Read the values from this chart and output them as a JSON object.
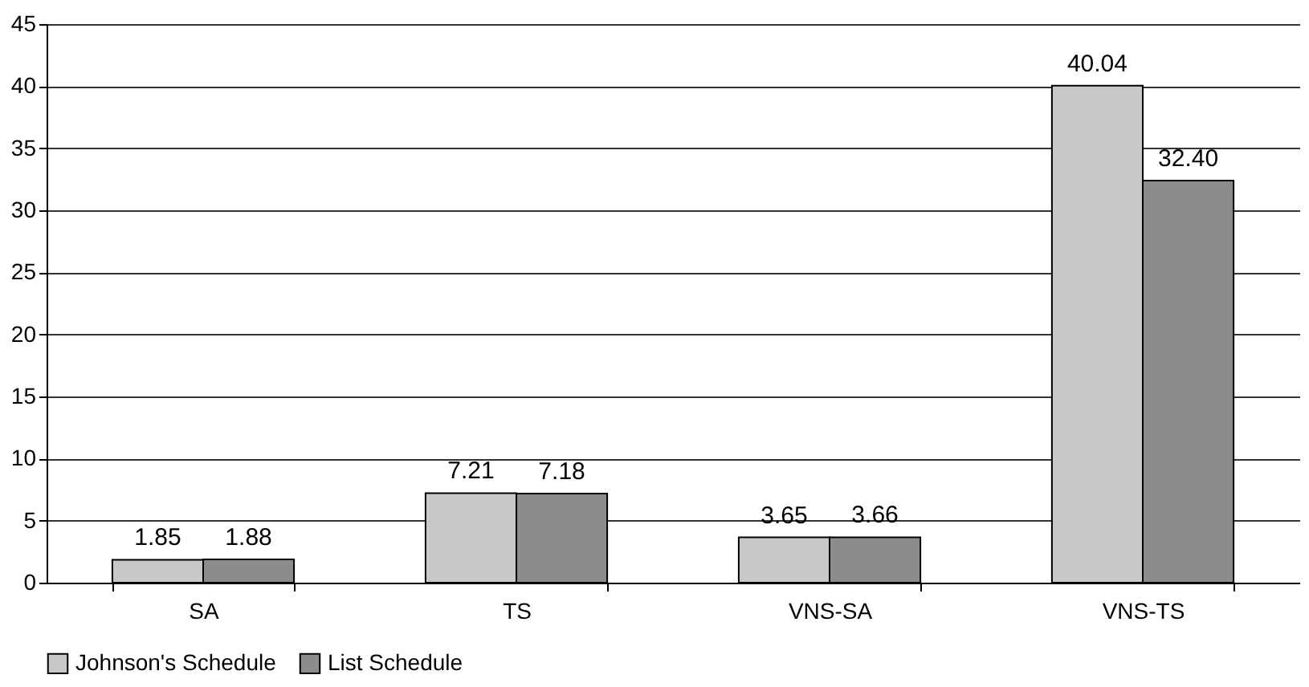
{
  "chart_data": {
    "type": "bar",
    "categories": [
      "SA",
      "TS",
      "VNS-SA",
      "VNS-TS"
    ],
    "series": [
      {
        "name": "Johnson's Schedule",
        "color": "#c8c8c8",
        "values": [
          1.85,
          7.21,
          3.65,
          40.04
        ],
        "value_labels": [
          "1.85",
          "7.21",
          "3.65",
          "40.04"
        ]
      },
      {
        "name": "List Schedule",
        "color": "#8c8c8c",
        "values": [
          1.88,
          7.18,
          3.66,
          32.4
        ],
        "value_labels": [
          "1.88",
          "7.18",
          "3.66",
          "32.40"
        ]
      }
    ],
    "ylim": [
      0,
      45
    ],
    "yticks": [
      0,
      5,
      10,
      15,
      20,
      25,
      30,
      35,
      40,
      45
    ],
    "grid": "y",
    "legend": "bottom"
  }
}
